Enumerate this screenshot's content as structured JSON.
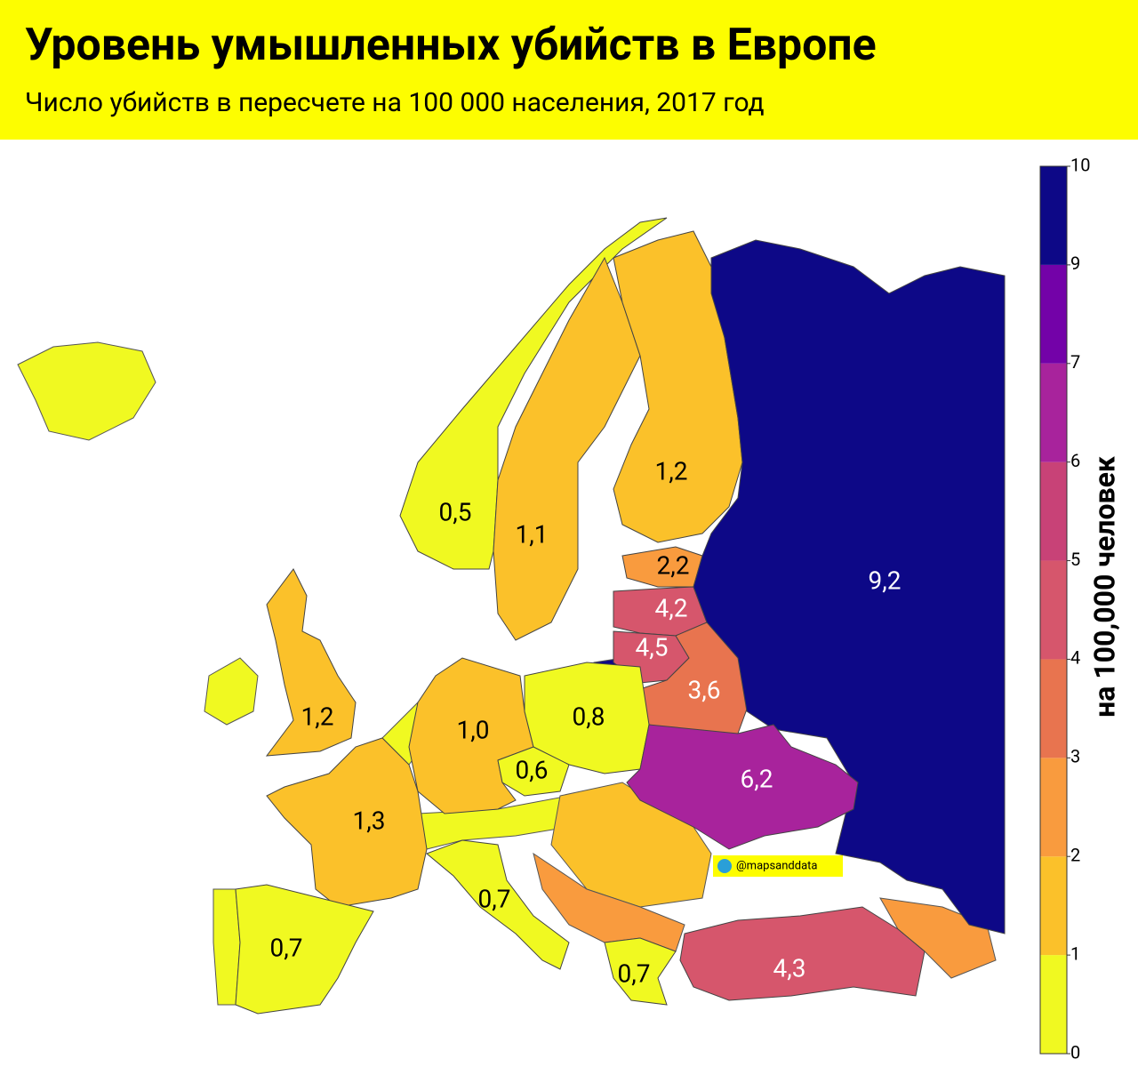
{
  "header": {
    "title": "Уровень умышленных убийств в Европе",
    "subtitle": "Число убийств в пересчете на 100 000 населения, 2017 год"
  },
  "map": {
    "regions": [
      {
        "value": 0.5,
        "label": "0,5"
      },
      {
        "value": 1.1,
        "label": "1,1"
      },
      {
        "value": 1.2,
        "label": "1,2"
      },
      {
        "value": 2.2,
        "label": "2,2"
      },
      {
        "value": 4.2,
        "label": "4,2"
      },
      {
        "value": 4.5,
        "label": "4,5"
      },
      {
        "value": 3.6,
        "label": "3,6"
      },
      {
        "value": 9.2,
        "label": "9,2"
      },
      {
        "value": 1.2,
        "label": "1,2"
      },
      {
        "value": 1.0,
        "label": "1,0"
      },
      {
        "value": 0.8,
        "label": "0,8"
      },
      {
        "value": 0.6,
        "label": "0,6"
      },
      {
        "value": 6.2,
        "label": "6,2"
      },
      {
        "value": 1.3,
        "label": "1,3"
      },
      {
        "value": 0.7,
        "label": "0,7"
      },
      {
        "value": 0.7,
        "label": "0,7"
      },
      {
        "value": 0.7,
        "label": "0,7"
      },
      {
        "value": 4.3,
        "label": "4,3"
      }
    ],
    "legend": {
      "title": "на 100,000 человек",
      "ticks": [
        0,
        1,
        2,
        3,
        4,
        5,
        6,
        7,
        9,
        10
      ],
      "colors": [
        "#f0f921",
        "#fbc12a",
        "#f99b3e",
        "#e8744f",
        "#d6566c",
        "#c84277",
        "#a8239c",
        "#7302a8",
        "#0d0887"
      ]
    }
  },
  "watermark": "@mapsanddata"
}
